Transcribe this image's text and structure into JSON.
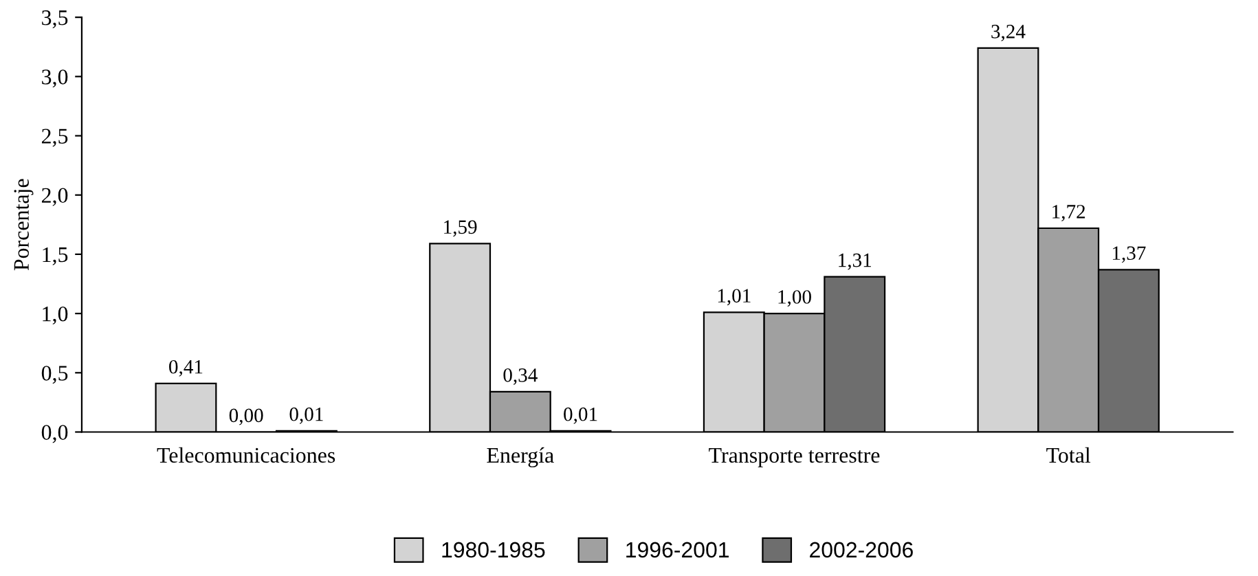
{
  "chart_data": {
    "type": "bar",
    "ylabel": "Porcentaje",
    "categories": [
      "Telecomunicaciones",
      "Energía",
      "Transporte terrestre",
      "Total"
    ],
    "series": [
      {
        "name": "1980-1985",
        "color": "#d3d3d3",
        "values": [
          0.41,
          1.59,
          1.01,
          3.24
        ],
        "value_labels": [
          "0,41",
          "1,59",
          "1,01",
          "3,24"
        ]
      },
      {
        "name": "1996-2001",
        "color": "#a0a0a0",
        "values": [
          0.0,
          0.34,
          1.0,
          1.72
        ],
        "value_labels": [
          "0,00",
          "0,34",
          "1,00",
          "1,72"
        ]
      },
      {
        "name": "2002-2006",
        "color": "#6e6e6e",
        "values": [
          0.01,
          0.01,
          1.31,
          1.37
        ],
        "value_labels": [
          "0,01",
          "0,01",
          "1,31",
          "1,37"
        ]
      }
    ],
    "ylim": [
      0,
      3.5
    ],
    "yticks": [
      {
        "value": 0,
        "label": "0,0"
      },
      {
        "value": 0.5,
        "label": "0,5"
      },
      {
        "value": 1,
        "label": "1,0"
      },
      {
        "value": 1.5,
        "label": "1,5"
      },
      {
        "value": 2,
        "label": "2,0"
      },
      {
        "value": 2.5,
        "label": "2,5"
      },
      {
        "value": 3,
        "label": "3,0"
      },
      {
        "value": 3.5,
        "label": "3,5"
      }
    ],
    "grid": false,
    "legend": "bottom"
  }
}
